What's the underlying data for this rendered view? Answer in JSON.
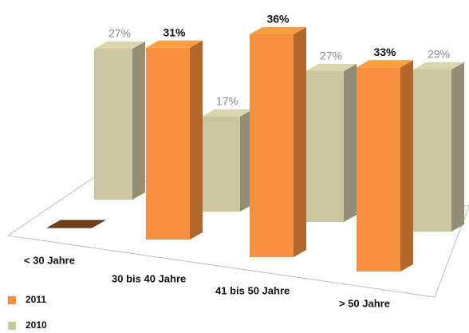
{
  "chart_data": {
    "type": "bar3d",
    "categories": [
      "< 30 Jahre",
      "30 bis 40 Jahre",
      "41 bis 50 Jahre",
      "> 50 Jahre"
    ],
    "series": [
      {
        "name": "2011",
        "color": "#f7913d",
        "values": [
          0,
          31,
          36,
          33
        ],
        "value_labels": [
          null,
          "31%",
          "36%",
          "33%"
        ]
      },
      {
        "name": "2010",
        "color": "#cbc5a0",
        "values": [
          27,
          17,
          27,
          29
        ],
        "value_labels": [
          "27%",
          "17%",
          "27%",
          "29%"
        ]
      }
    ]
  }
}
